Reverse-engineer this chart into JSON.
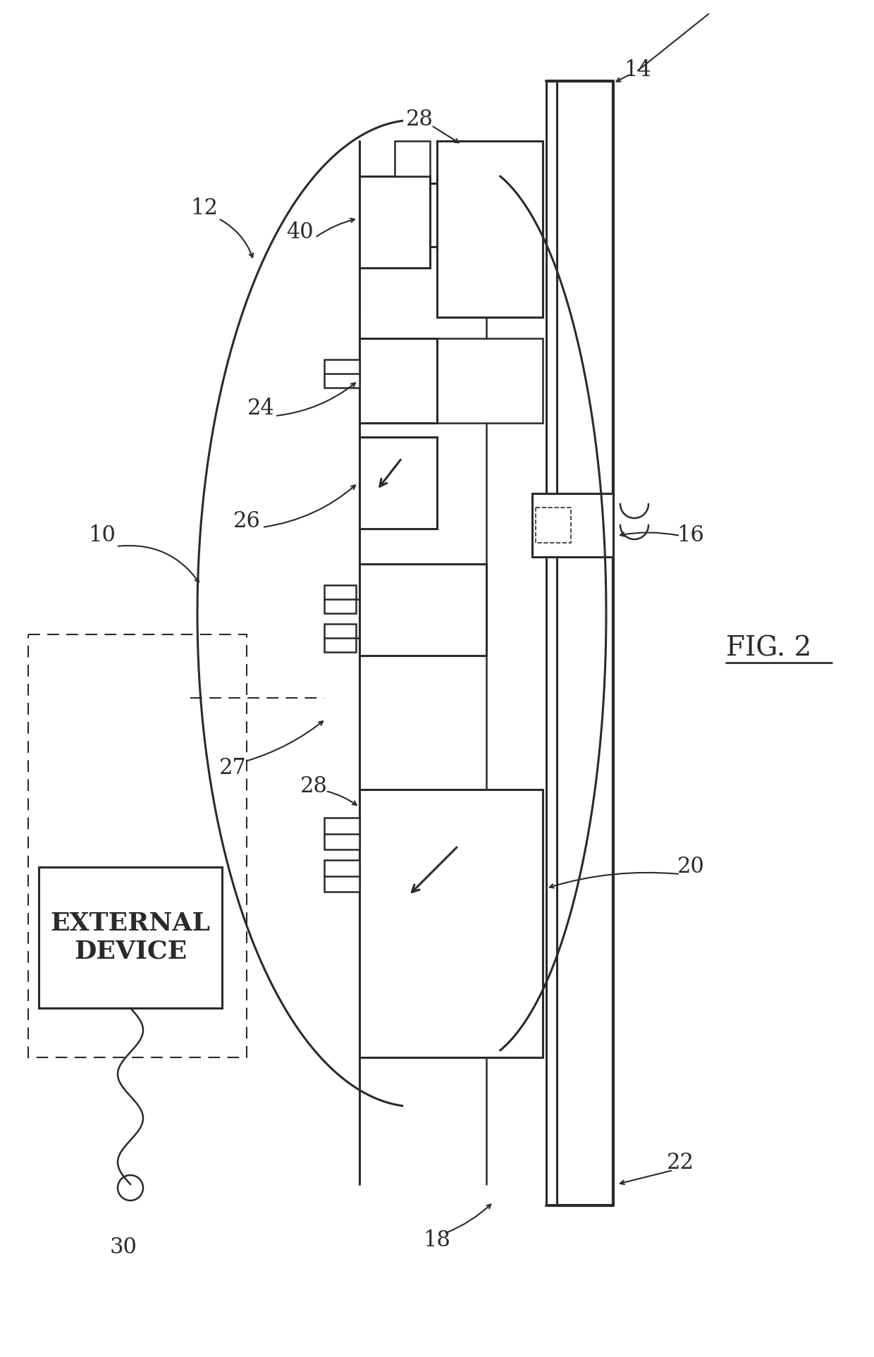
{
  "bg_color": "#ffffff",
  "line_color": "#2a2a2a",
  "fig_label": "FIG. 2",
  "external_text": "EXTERNAL\nDEVICE"
}
